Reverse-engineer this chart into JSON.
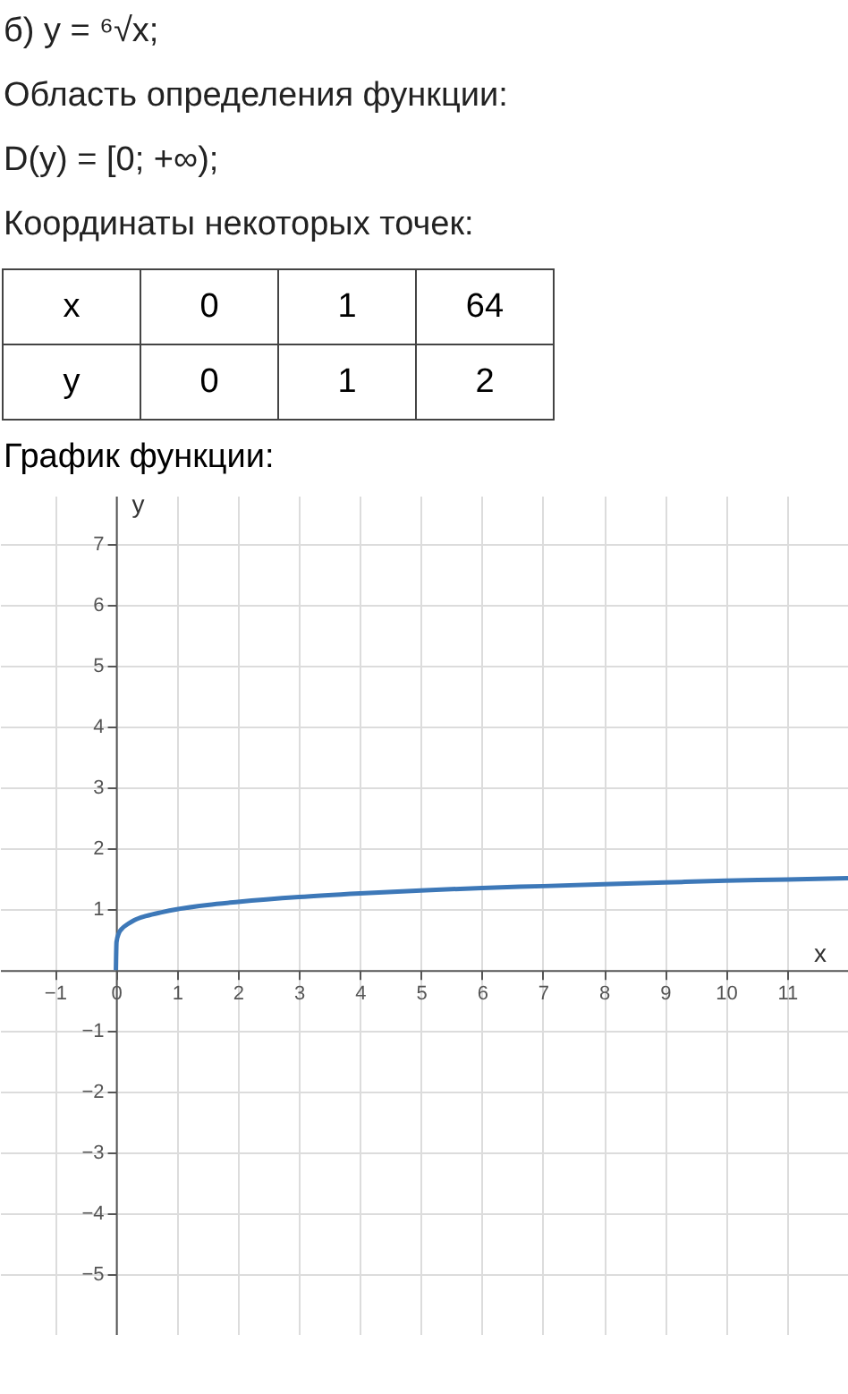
{
  "chart_data": {
    "type": "line",
    "title": "График функции:",
    "xlabel": "x",
    "ylabel": "y",
    "annotations": [
      "б) y = ⁶√x;",
      "Область определения функции:",
      "D(y) = [0; +∞);",
      "Координаты некоторых точек:",
      "x",
      "0",
      "1",
      "64",
      "y",
      "0",
      "1",
      "2"
    ],
    "x": [
      0,
      0.01,
      0.05,
      0.1,
      0.2,
      0.3,
      0.5,
      0.75,
      1,
      1.5,
      2,
      3,
      4,
      5,
      6,
      7,
      8,
      9,
      10,
      11,
      12
    ],
    "series": [
      {
        "color": "#3d78b8",
        "values": [
          0,
          0.46,
          0.61,
          0.68,
          0.76,
          0.82,
          0.89,
          0.95,
          1,
          1.07,
          1.12,
          1.2,
          1.26,
          1.31,
          1.35,
          1.38,
          1.41,
          1.44,
          1.47,
          1.49,
          1.51
        ]
      }
    ],
    "xlim": [
      -1.9,
      12
    ],
    "ylim": [
      -6,
      7.8
    ],
    "xticks": [
      -1,
      0,
      1,
      2,
      3,
      4,
      5,
      6,
      7,
      8,
      9,
      10,
      11
    ],
    "yticks": [
      -5,
      -4,
      -3,
      -2,
      -1,
      1,
      2,
      3,
      4,
      5,
      6,
      7
    ],
    "grid": true
  }
}
